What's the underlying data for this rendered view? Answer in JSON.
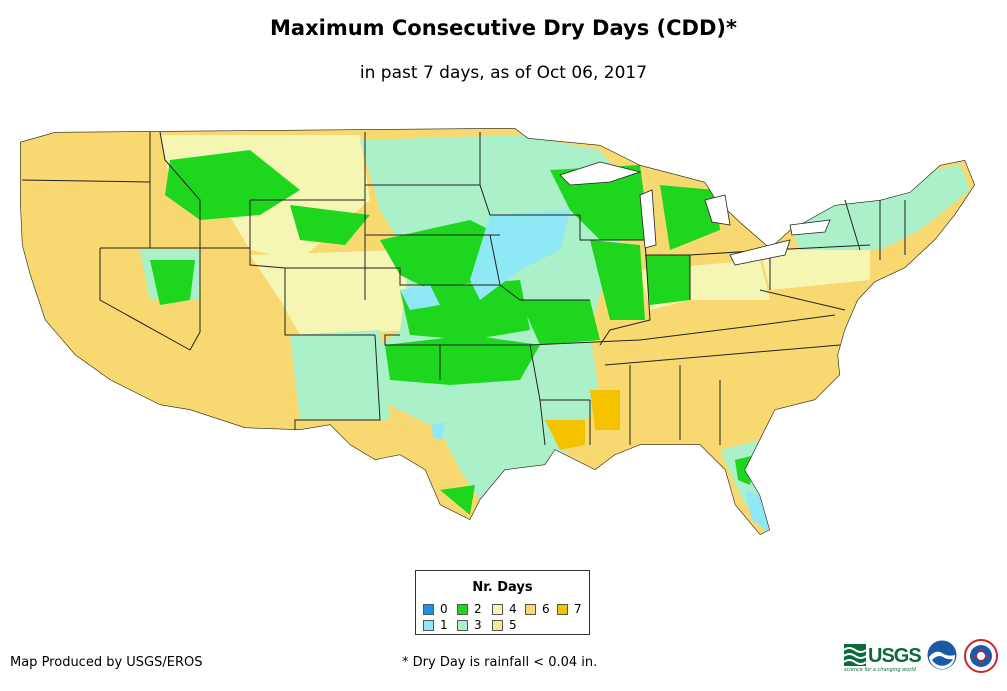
{
  "title": "Maximum Consecutive Dry Days (CDD)*",
  "subtitle": "in past 7 days, as of Oct 06, 2017",
  "legend": {
    "title": "Nr. Days",
    "items": [
      {
        "label": "0",
        "color": "#1e90e8"
      },
      {
        "label": "1",
        "color": "#8ee8f5"
      },
      {
        "label": "2",
        "color": "#1fd61f"
      },
      {
        "label": "3",
        "color": "#aaf0c8"
      },
      {
        "label": "4",
        "color": "#f5f5b4"
      },
      {
        "label": "5",
        "color": "#fae88c"
      },
      {
        "label": "6",
        "color": "#f8d870"
      },
      {
        "label": "7",
        "color": "#f5c200"
      }
    ]
  },
  "footer": {
    "producer": "Map Produced by USGS/EROS",
    "note": "* Dry Day is rainfall < 0.04 in."
  },
  "logos": {
    "usgs_text": "USGS",
    "usgs_tagline": "science for a changing world",
    "items": [
      "usgs-logo",
      "noaa-logo",
      "nws-logo"
    ]
  }
}
